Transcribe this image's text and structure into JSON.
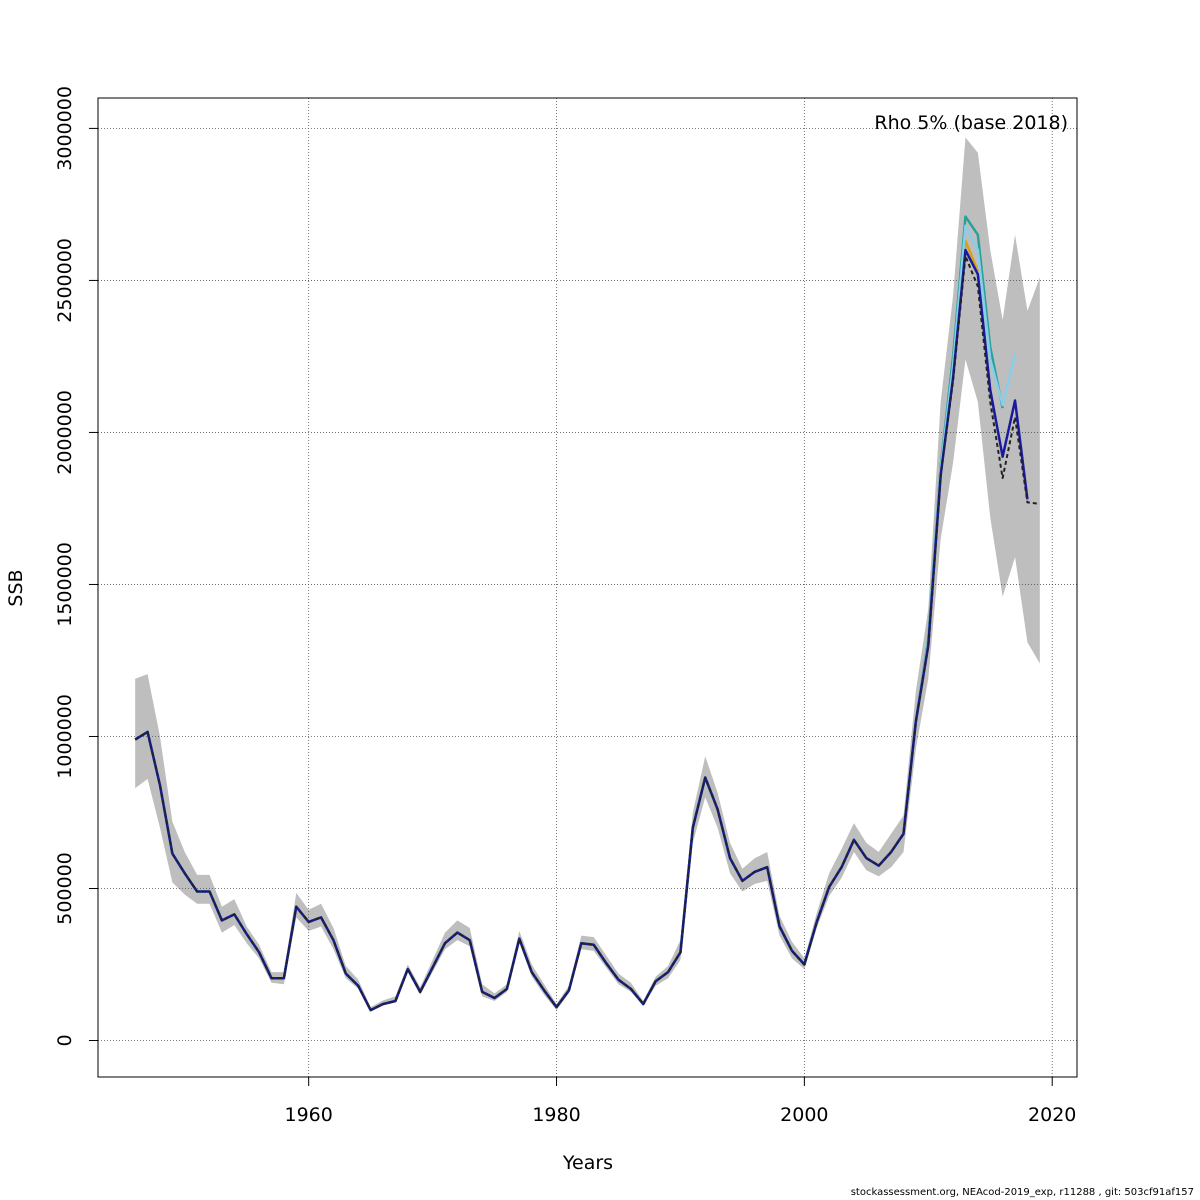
{
  "chart_data": {
    "type": "line",
    "annotation": "Rho 5% (base 2018)",
    "xlabel": "Years",
    "ylabel": "SSB",
    "xlim": [
      1943,
      2022
    ],
    "ylim": [
      -120000,
      3100000
    ],
    "xticks": [
      1960,
      1980,
      2000,
      2020
    ],
    "yticks": [
      0,
      500000,
      1000000,
      1500000,
      2000000,
      2500000,
      3000000
    ],
    "grid": true,
    "x": [
      1946,
      1947,
      1948,
      1949,
      1950,
      1951,
      1952,
      1953,
      1954,
      1955,
      1956,
      1957,
      1958,
      1959,
      1960,
      1961,
      1962,
      1963,
      1964,
      1965,
      1966,
      1967,
      1968,
      1969,
      1970,
      1971,
      1972,
      1973,
      1974,
      1975,
      1976,
      1977,
      1978,
      1979,
      1980,
      1981,
      1982,
      1983,
      1984,
      1985,
      1986,
      1987,
      1988,
      1989,
      1990,
      1991,
      1992,
      1993,
      1994,
      1995,
      1996,
      1997,
      1998,
      1999,
      2000,
      2001,
      2002,
      2003,
      2004,
      2005,
      2006,
      2007,
      2008,
      2009,
      2010,
      2011,
      2012,
      2013,
      2014,
      2015,
      2016,
      2017,
      2018,
      2019
    ],
    "confidence_band": {
      "lower": [
        830000,
        860000,
        700000,
        520000,
        480000,
        450000,
        450000,
        355000,
        380000,
        320000,
        270000,
        190000,
        185000,
        405000,
        360000,
        375000,
        300000,
        205000,
        170000,
        95000,
        115000,
        125000,
        225000,
        150000,
        225000,
        300000,
        330000,
        310000,
        145000,
        130000,
        160000,
        320000,
        210000,
        150000,
        100000,
        155000,
        300000,
        295000,
        240000,
        185000,
        160000,
        115000,
        180000,
        205000,
        265000,
        650000,
        800000,
        700000,
        550000,
        490000,
        515000,
        525000,
        345000,
        270000,
        235000,
        370000,
        475000,
        535000,
        620000,
        560000,
        540000,
        570000,
        620000,
        960000,
        1190000,
        1650000,
        1900000,
        2240000,
        2100000,
        1720000,
        1460000,
        1590000,
        1310000,
        1240000
      ],
      "upper": [
        1190000,
        1205000,
        1000000,
        720000,
        620000,
        545000,
        545000,
        440000,
        465000,
        375000,
        315000,
        225000,
        225000,
        485000,
        430000,
        450000,
        370000,
        245000,
        200000,
        110000,
        132000,
        145000,
        250000,
        175000,
        265000,
        355000,
        395000,
        370000,
        185000,
        155000,
        185000,
        360000,
        250000,
        185000,
        120000,
        180000,
        345000,
        340000,
        280000,
        220000,
        190000,
        130000,
        210000,
        245000,
        330000,
        750000,
        935000,
        815000,
        650000,
        565000,
        600000,
        620000,
        410000,
        325000,
        270000,
        420000,
        550000,
        630000,
        715000,
        650000,
        620000,
        680000,
        740000,
        1150000,
        1420000,
        2100000,
        2450000,
        2970000,
        2920000,
        2600000,
        2370000,
        2650000,
        2400000,
        2510000
      ]
    },
    "series": [
      {
        "color": "#222222",
        "dashed": true,
        "values": [
          990000,
          1015000,
          840000,
          615000,
          550000,
          490000,
          490000,
          395000,
          415000,
          350000,
          290000,
          205000,
          205000,
          440000,
          390000,
          405000,
          330000,
          220000,
          180000,
          100000,
          120000,
          130000,
          235000,
          160000,
          240000,
          320000,
          355000,
          330000,
          160000,
          140000,
          170000,
          335000,
          225000,
          165000,
          110000,
          165000,
          320000,
          315000,
          255000,
          200000,
          170000,
          120000,
          195000,
          225000,
          290000,
          700000,
          865000,
          760000,
          600000,
          525000,
          555000,
          570000,
          375000,
          295000,
          250000,
          390000,
          505000,
          570000,
          660000,
          600000,
          575000,
          620000,
          680000,
          1050000,
          1300000,
          1860000,
          2170000,
          2580000,
          2480000,
          2100000,
          1850000,
          2050000,
          1770000,
          1765000
        ]
      },
      {
        "color": "#1a1a9e",
        "dashed": false,
        "values": [
          990000,
          1015000,
          840000,
          615000,
          550000,
          490000,
          490000,
          395000,
          415000,
          350000,
          290000,
          205000,
          205000,
          440000,
          390000,
          405000,
          330000,
          220000,
          180000,
          100000,
          120000,
          130000,
          235000,
          160000,
          240000,
          320000,
          355000,
          330000,
          160000,
          140000,
          170000,
          335000,
          225000,
          165000,
          110000,
          165000,
          320000,
          315000,
          255000,
          200000,
          170000,
          120000,
          195000,
          225000,
          290000,
          700000,
          865000,
          760000,
          600000,
          525000,
          555000,
          570000,
          375000,
          295000,
          250000,
          390000,
          505000,
          570000,
          660000,
          600000,
          575000,
          620000,
          680000,
          1050000,
          1300000,
          1860000,
          2180000,
          2600000,
          2520000,
          2140000,
          1920000,
          2105000,
          1780000,
          null
        ]
      },
      {
        "color": "#87ceeb",
        "dashed": false,
        "values": [
          990000,
          1015000,
          840000,
          615000,
          550000,
          490000,
          490000,
          395000,
          415000,
          350000,
          290000,
          205000,
          205000,
          440000,
          390000,
          405000,
          330000,
          220000,
          180000,
          100000,
          120000,
          130000,
          235000,
          160000,
          240000,
          320000,
          355000,
          330000,
          160000,
          140000,
          170000,
          335000,
          225000,
          165000,
          110000,
          165000,
          320000,
          315000,
          255000,
          200000,
          170000,
          120000,
          195000,
          225000,
          290000,
          700000,
          865000,
          760000,
          600000,
          525000,
          555000,
          570000,
          375000,
          295000,
          250000,
          390000,
          505000,
          570000,
          660000,
          600000,
          575000,
          620000,
          680000,
          1050000,
          1310000,
          1880000,
          2220000,
          2680000,
          2600000,
          2240000,
          2090000,
          2260000,
          null,
          null
        ]
      },
      {
        "color": "#2aa198",
        "dashed": false,
        "values": [
          990000,
          1015000,
          840000,
          615000,
          550000,
          490000,
          490000,
          395000,
          415000,
          350000,
          290000,
          205000,
          205000,
          440000,
          390000,
          405000,
          330000,
          220000,
          180000,
          100000,
          120000,
          130000,
          235000,
          160000,
          240000,
          320000,
          355000,
          330000,
          160000,
          140000,
          170000,
          335000,
          225000,
          165000,
          110000,
          165000,
          320000,
          315000,
          255000,
          200000,
          170000,
          120000,
          195000,
          225000,
          290000,
          700000,
          865000,
          760000,
          600000,
          525000,
          555000,
          570000,
          375000,
          295000,
          250000,
          390000,
          505000,
          570000,
          660000,
          600000,
          575000,
          620000,
          680000,
          1050000,
          1320000,
          1890000,
          2250000,
          2710000,
          2650000,
          2280000,
          2080000,
          null,
          null,
          null
        ]
      },
      {
        "color": "#d4a017",
        "dashed": false,
        "values": [
          990000,
          1015000,
          840000,
          615000,
          550000,
          490000,
          490000,
          395000,
          415000,
          350000,
          290000,
          205000,
          205000,
          440000,
          390000,
          405000,
          330000,
          220000,
          180000,
          100000,
          120000,
          130000,
          235000,
          160000,
          240000,
          320000,
          355000,
          330000,
          160000,
          140000,
          170000,
          335000,
          225000,
          165000,
          110000,
          165000,
          320000,
          315000,
          255000,
          200000,
          170000,
          120000,
          195000,
          225000,
          290000,
          700000,
          865000,
          760000,
          600000,
          525000,
          555000,
          570000,
          375000,
          295000,
          250000,
          390000,
          505000,
          570000,
          660000,
          600000,
          575000,
          620000,
          680000,
          1050000,
          1300000,
          1870000,
          2200000,
          2630000,
          2530000,
          null,
          null,
          null,
          null,
          null
        ]
      },
      {
        "color": "#6b8e23",
        "dashed": false,
        "values": [
          990000,
          1015000,
          840000,
          615000,
          550000,
          490000,
          490000,
          395000,
          415000,
          350000,
          290000,
          205000,
          205000,
          440000,
          390000,
          405000,
          330000,
          220000,
          180000,
          100000,
          120000,
          130000,
          235000,
          160000,
          240000,
          320000,
          355000,
          330000,
          160000,
          140000,
          170000,
          335000,
          225000,
          165000,
          110000,
          165000,
          320000,
          315000,
          255000,
          200000,
          170000,
          120000,
          195000,
          225000,
          290000,
          700000,
          865000,
          760000,
          600000,
          525000,
          555000,
          570000,
          375000,
          295000,
          250000,
          390000,
          505000,
          570000,
          660000,
          600000,
          575000,
          620000,
          680000,
          1050000,
          1300000,
          1860000,
          2190000,
          2600000,
          null,
          null,
          null,
          null,
          null,
          null
        ]
      }
    ]
  },
  "footer": "stockassessment.org, NEAcod-2019_exp, r11288 , git: 503cf91af157"
}
